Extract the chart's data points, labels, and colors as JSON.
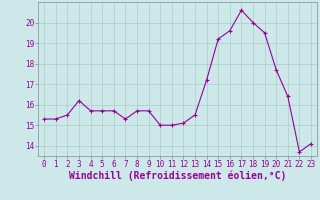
{
  "x": [
    0,
    1,
    2,
    3,
    4,
    5,
    6,
    7,
    8,
    9,
    10,
    11,
    12,
    13,
    14,
    15,
    16,
    17,
    18,
    19,
    20,
    21,
    22,
    23
  ],
  "y": [
    15.3,
    15.3,
    15.5,
    16.2,
    15.7,
    15.7,
    15.7,
    15.3,
    15.7,
    15.7,
    15.0,
    15.0,
    15.1,
    15.5,
    17.2,
    19.2,
    19.6,
    20.6,
    20.0,
    19.5,
    17.7,
    16.4,
    13.7,
    14.1
  ],
  "line_color": "#990099",
  "marker": "+",
  "marker_size": 3,
  "bg_color": "#cce8e8",
  "grid_color": "#aacccc",
  "xlabel": "Windchill (Refroidissement éolien,°C)",
  "xlabel_color": "#990099",
  "tick_color": "#990099",
  "label_color": "#990099",
  "ylim": [
    13.5,
    21.0
  ],
  "xlim": [
    -0.5,
    23.5
  ],
  "yticks": [
    14,
    15,
    16,
    17,
    18,
    19,
    20
  ],
  "xticks": [
    0,
    1,
    2,
    3,
    4,
    5,
    6,
    7,
    8,
    9,
    10,
    11,
    12,
    13,
    14,
    15,
    16,
    17,
    18,
    19,
    20,
    21,
    22,
    23
  ],
  "xtick_labels": [
    "0",
    "1",
    "2",
    "3",
    "4",
    "5",
    "6",
    "7",
    "8",
    "9",
    "10",
    "11",
    "12",
    "13",
    "14",
    "15",
    "16",
    "17",
    "18",
    "19",
    "20",
    "21",
    "22",
    "23"
  ],
  "tick_fontsize": 5.5,
  "xlabel_fontsize": 7,
  "spine_color": "#888899",
  "linewidth": 0.8,
  "markeredgewidth": 0.8
}
